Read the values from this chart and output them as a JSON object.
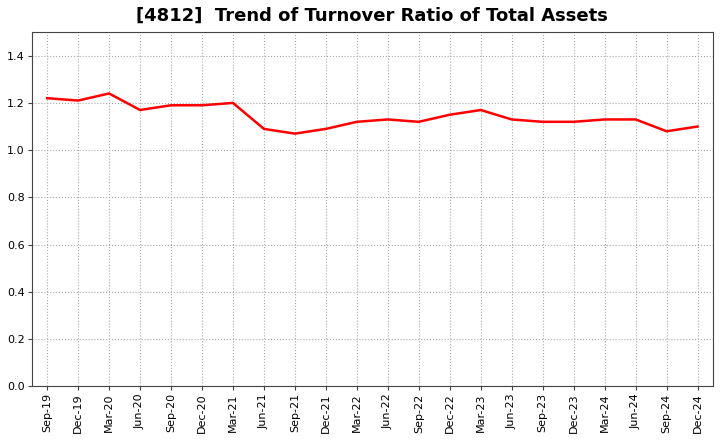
{
  "title": "[4812]  Trend of Turnover Ratio of Total Assets",
  "labels": [
    "Sep-19",
    "Dec-19",
    "Mar-20",
    "Jun-20",
    "Sep-20",
    "Dec-20",
    "Mar-21",
    "Jun-21",
    "Sep-21",
    "Dec-21",
    "Mar-22",
    "Jun-22",
    "Sep-22",
    "Dec-22",
    "Mar-23",
    "Jun-23",
    "Sep-23",
    "Dec-23",
    "Mar-24",
    "Jun-24",
    "Sep-24",
    "Dec-24"
  ],
  "values": [
    1.22,
    1.21,
    1.24,
    1.17,
    1.19,
    1.19,
    1.2,
    1.09,
    1.07,
    1.09,
    1.12,
    1.13,
    1.12,
    1.15,
    1.17,
    1.13,
    1.12,
    1.12,
    1.13,
    1.13,
    1.08,
    1.1
  ],
  "line_color": "#ff0000",
  "line_width": 1.8,
  "ylim": [
    0.0,
    1.5
  ],
  "yticks": [
    0.0,
    0.2,
    0.4,
    0.6,
    0.8,
    1.0,
    1.2,
    1.4
  ],
  "grid_color": "#aaaaaa",
  "bg_color": "#ffffff",
  "title_fontsize": 13,
  "title_fontweight": "bold",
  "tick_fontsize": 8,
  "title_loc": "center"
}
